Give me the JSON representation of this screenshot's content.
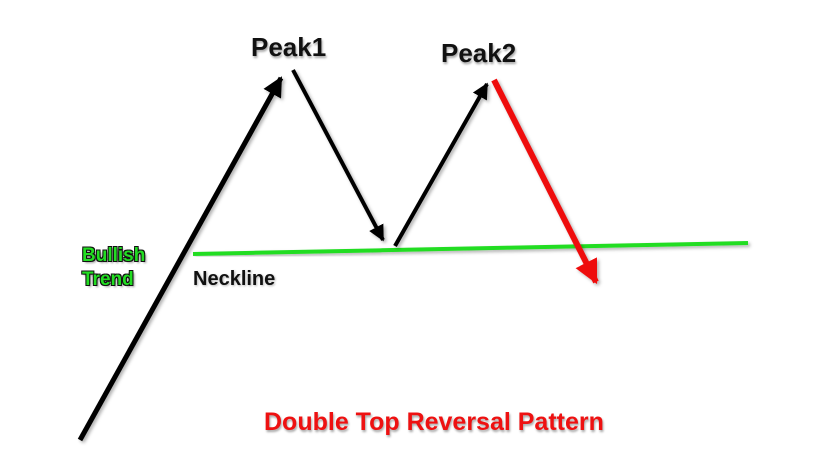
{
  "labels": {
    "peak1": "Peak1",
    "peak2": "Peak2",
    "bullish_line1": "Bullish",
    "bullish_line2": "Trend",
    "neckline": "Neckline",
    "title": "Double Top Reversal Pattern"
  },
  "colors": {
    "background": "#ffffff",
    "arrow": "#000000",
    "breakdown_arrow": "#ee1111",
    "neckline": "#22dd22",
    "bullish_text": "#22dd22",
    "title_text": "#ee1111"
  }
}
